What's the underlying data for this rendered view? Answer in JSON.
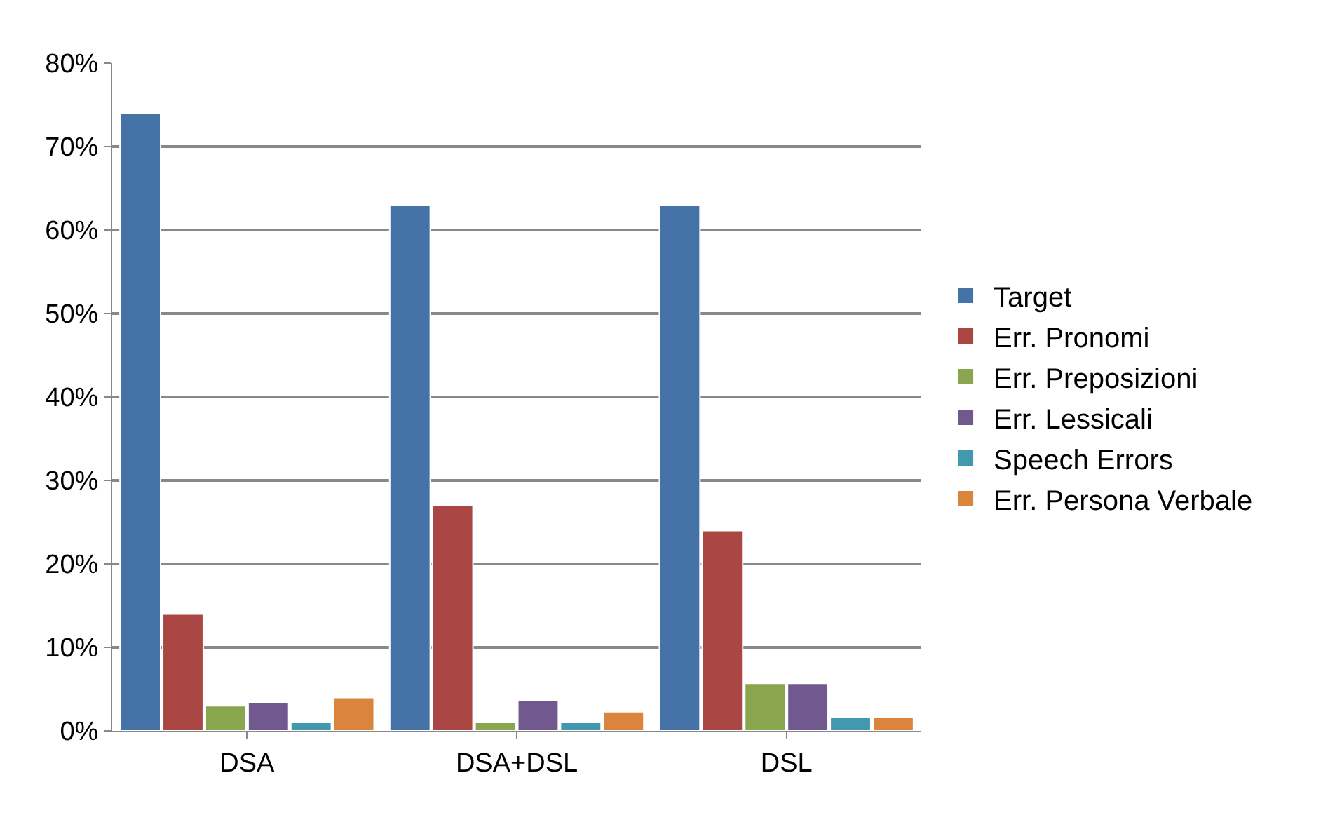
{
  "chart_data": {
    "type": "bar",
    "categories": [
      "DSA",
      "DSA+DSL",
      "DSL"
    ],
    "series": [
      {
        "name": "Target",
        "color": "#4572a7",
        "values": [
          74,
          63,
          63
        ]
      },
      {
        "name": "Err. Pronomi",
        "color": "#aa4643",
        "values": [
          14,
          27,
          24
        ]
      },
      {
        "name": "Err. Preposizioni",
        "color": "#89a54e",
        "values": [
          3,
          1,
          5.7
        ]
      },
      {
        "name": "Err. Lessicali",
        "color": "#71588f",
        "values": [
          3.4,
          3.7,
          5.7
        ]
      },
      {
        "name": "Speech Errors",
        "color": "#4198af",
        "values": [
          1,
          1,
          1.6
        ]
      },
      {
        "name": "Err. Persona Verbale",
        "color": "#db843d",
        "values": [
          4,
          2.3,
          1.6
        ]
      }
    ],
    "ylim": [
      0,
      80
    ],
    "yticks": [
      {
        "value": 0,
        "label": "0%"
      },
      {
        "value": 10,
        "label": "10%"
      },
      {
        "value": 20,
        "label": "20%"
      },
      {
        "value": 30,
        "label": "30%"
      },
      {
        "value": 40,
        "label": "40%"
      },
      {
        "value": 50,
        "label": "50%"
      },
      {
        "value": 60,
        "label": "60%"
      },
      {
        "value": 70,
        "label": "70%"
      },
      {
        "value": 80,
        "label": "80%"
      }
    ],
    "grid": "y",
    "legend": "right"
  }
}
